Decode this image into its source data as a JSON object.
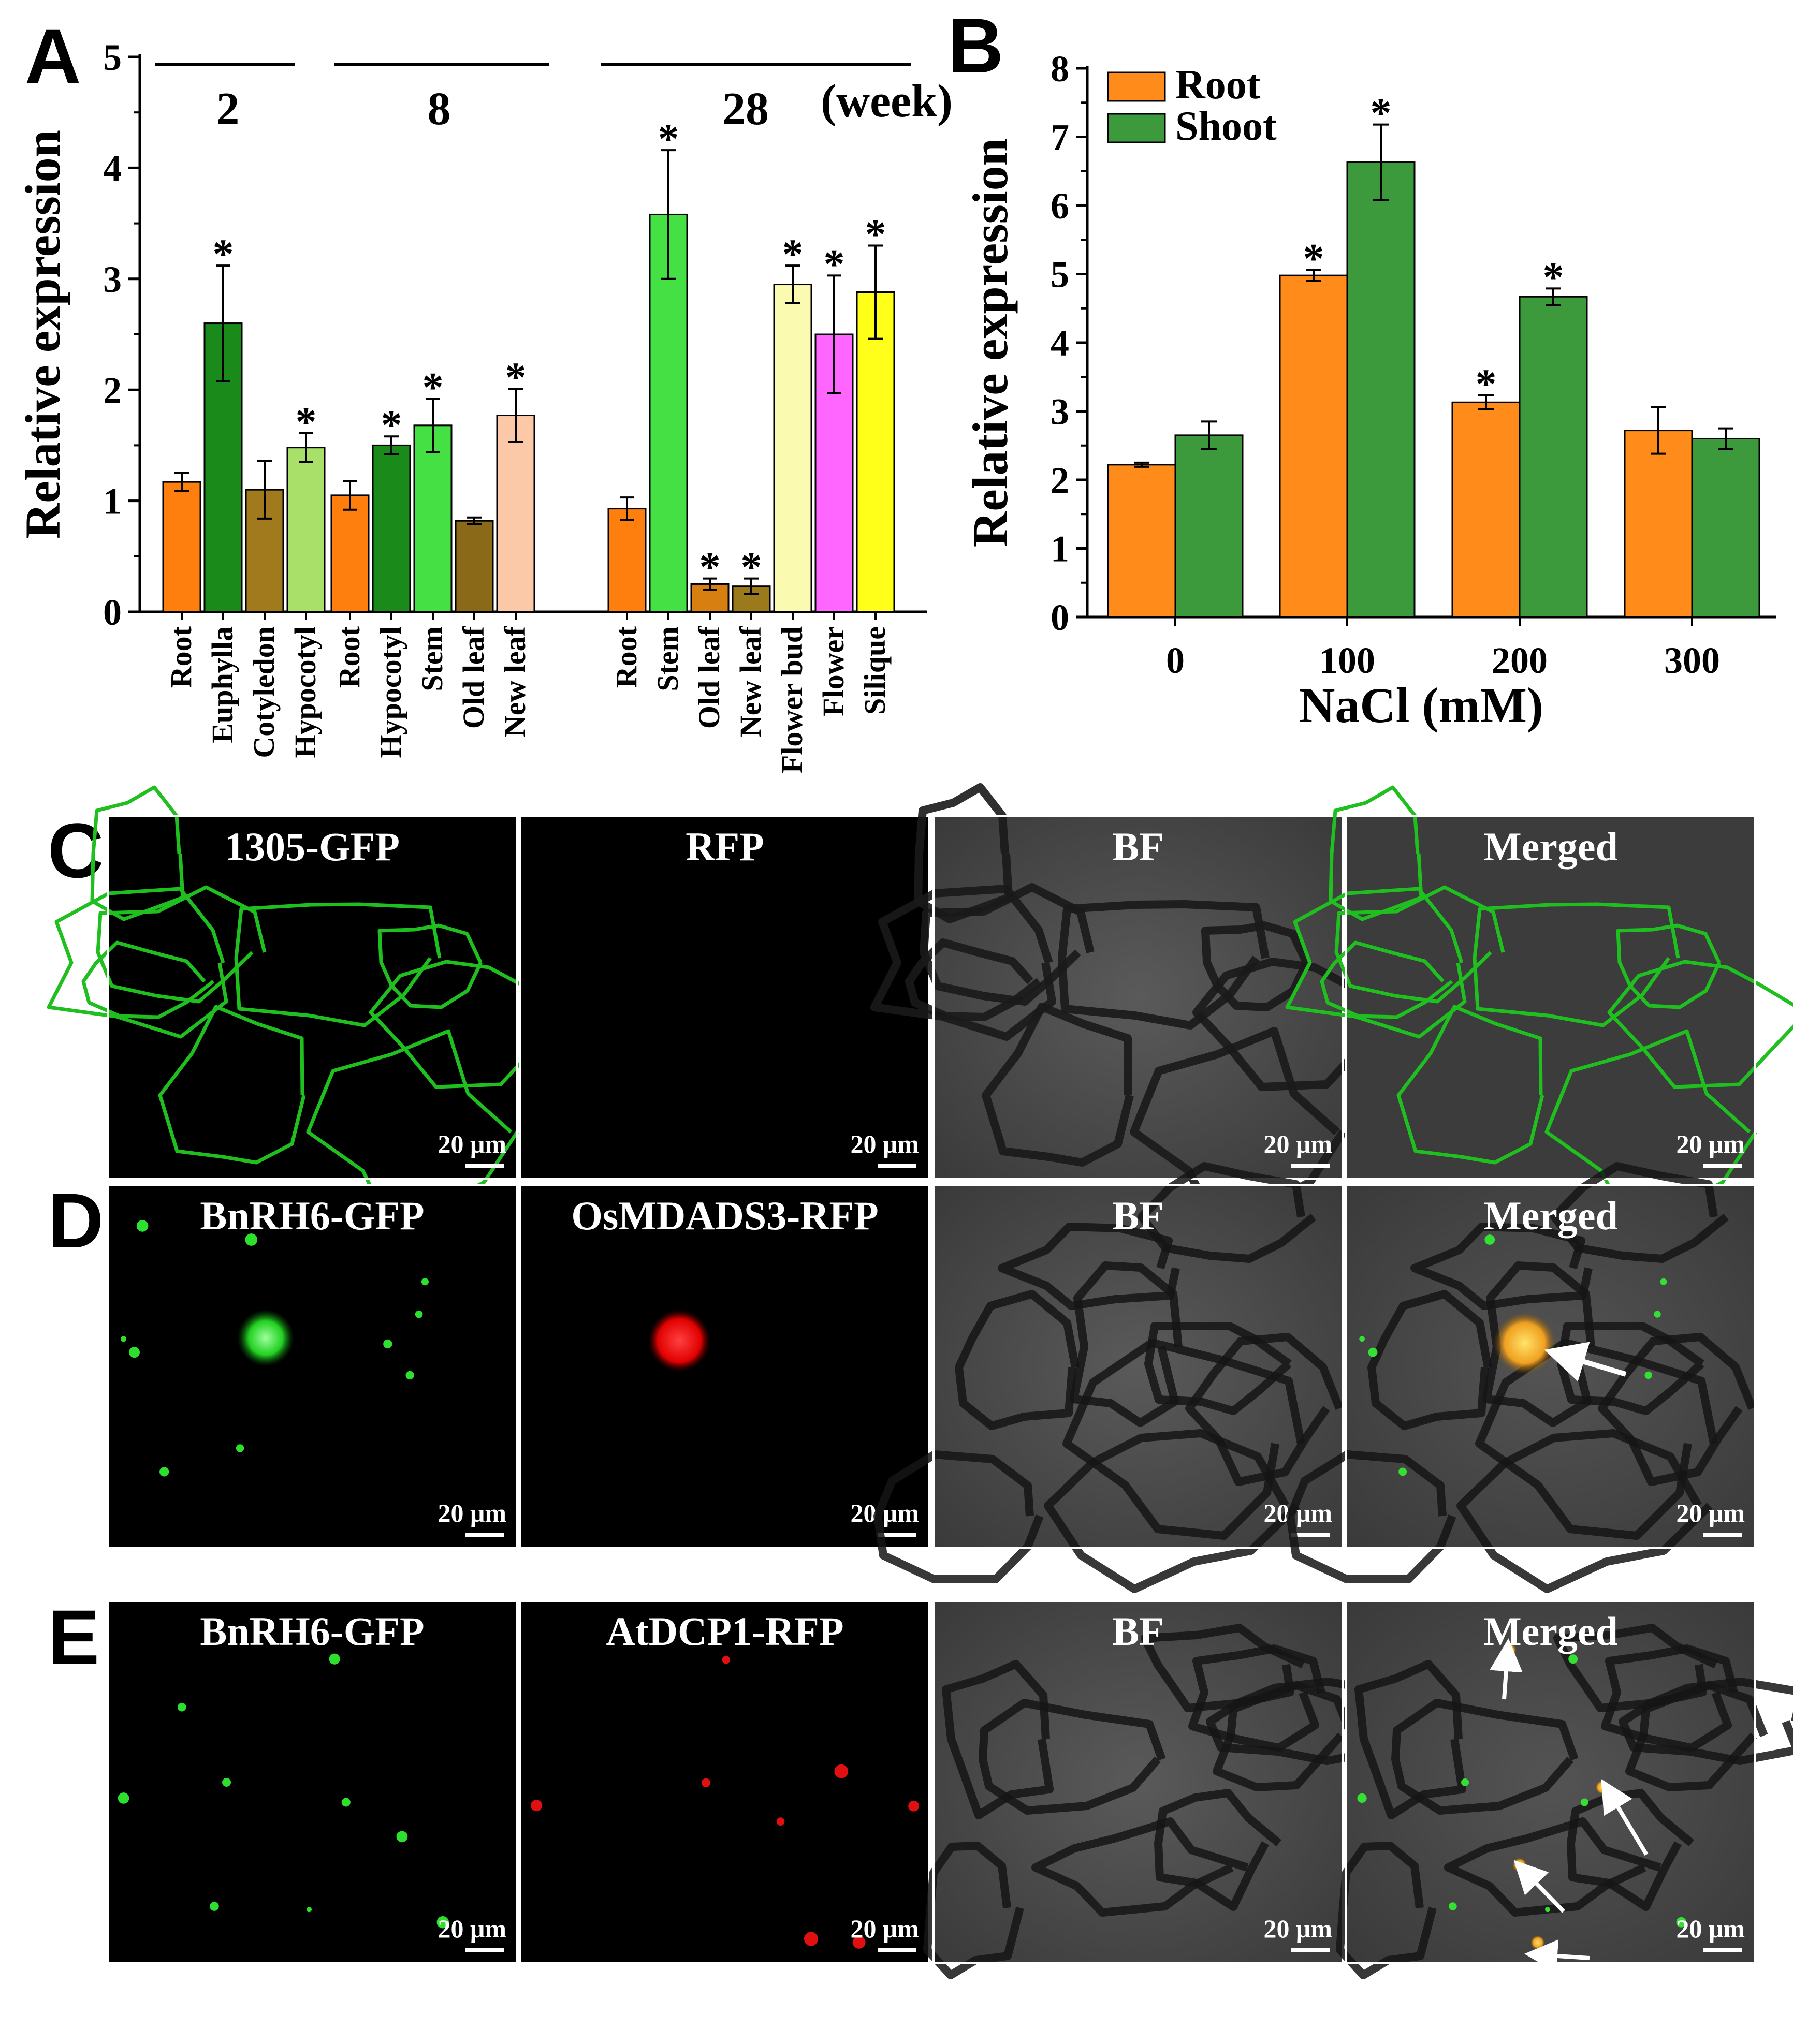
{
  "chart_data": [
    {
      "panel": "A",
      "type": "bar",
      "ylabel": "Relative expression",
      "ylim": [
        0,
        5
      ],
      "yticks": [
        0,
        1,
        2,
        3,
        4,
        5
      ],
      "unit_label": "(week)",
      "groups": [
        {
          "label": "2",
          "categories": [
            "Root",
            "Euphylla",
            "Cotyledon",
            "Hypocotyl"
          ],
          "values": [
            1.17,
            2.6,
            1.1,
            1.48
          ],
          "errors": [
            0.08,
            0.52,
            0.26,
            0.13
          ],
          "significant": [
            false,
            true,
            false,
            true
          ],
          "colors": [
            "#ff7f0e",
            "#1a8a1a",
            "#a07a1c",
            "#a8e06a"
          ]
        },
        {
          "label": "8",
          "categories": [
            "Root",
            "Hypocotyl",
            "Stem",
            "Old leaf",
            "New leaf"
          ],
          "values": [
            1.05,
            1.5,
            1.68,
            0.82,
            1.77
          ],
          "errors": [
            0.13,
            0.08,
            0.24,
            0.03,
            0.24
          ],
          "significant": [
            false,
            true,
            true,
            false,
            true
          ],
          "colors": [
            "#ff7f0e",
            "#1a8a1a",
            "#44e044",
            "#8a6a18",
            "#fbc9a8"
          ]
        },
        {
          "label": "28",
          "categories": [
            "Root",
            "Stem",
            "Old leaf",
            "New leaf",
            "Flower bud",
            "Flower",
            "Silique"
          ],
          "values": [
            0.93,
            3.58,
            0.25,
            0.23,
            2.95,
            2.5,
            2.88
          ],
          "errors": [
            0.1,
            0.58,
            0.05,
            0.07,
            0.17,
            0.53,
            0.42
          ],
          "significant": [
            false,
            true,
            true,
            true,
            true,
            true,
            true
          ],
          "colors": [
            "#ff7f0e",
            "#44e044",
            "#d77f10",
            "#9a7a1a",
            "#fafab0",
            "#ff66ff",
            "#ffff1a"
          ]
        }
      ]
    },
    {
      "panel": "B",
      "type": "bar",
      "xlabel": "NaCl  (mM)",
      "ylabel": "Relative expression",
      "ylim": [
        0,
        8
      ],
      "yticks": [
        0,
        1,
        2,
        3,
        4,
        5,
        6,
        7,
        8
      ],
      "categories": [
        "0",
        "100",
        "200",
        "300"
      ],
      "series": [
        {
          "name": "Root",
          "color": "#ff8c1a",
          "values": [
            2.22,
            4.98,
            3.13,
            2.72
          ],
          "errors": [
            0.03,
            0.08,
            0.1,
            0.34
          ],
          "significant": [
            false,
            true,
            true,
            false
          ]
        },
        {
          "name": "Shoot",
          "color": "#3c9a3c",
          "values": [
            2.65,
            6.63,
            4.67,
            2.6
          ],
          "errors": [
            0.2,
            0.55,
            0.12,
            0.15
          ],
          "significant": [
            false,
            true,
            true,
            false
          ]
        }
      ],
      "legend_position": "top-left"
    }
  ],
  "panels": {
    "A": "A",
    "B": "B",
    "C": "C",
    "D": "D",
    "E": "E"
  },
  "star_symbol": "*",
  "microscopy": {
    "scale_bar": "20 μm",
    "rows": [
      {
        "panel": "C",
        "labels": [
          "1305-GFP",
          "RFP",
          "BF",
          "Merged"
        ]
      },
      {
        "panel": "D",
        "labels": [
          "BnRH6-GFP",
          "OsMDADS3-RFP",
          "BF",
          "Merged"
        ]
      },
      {
        "panel": "E",
        "labels": [
          "BnRH6-GFP",
          "AtDCP1-RFP",
          "BF",
          "Merged"
        ]
      }
    ]
  }
}
